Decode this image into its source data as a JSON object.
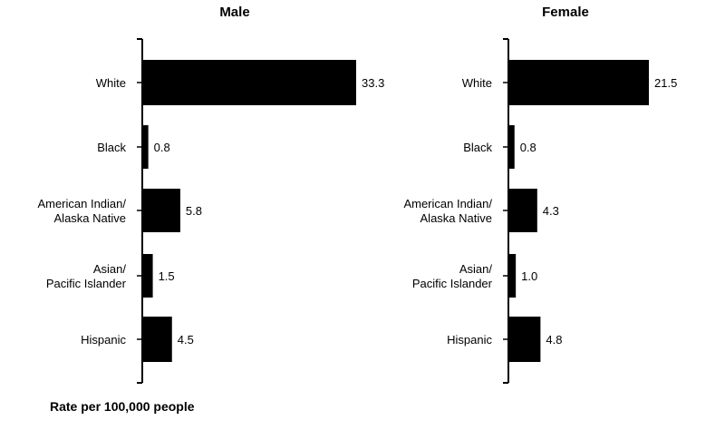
{
  "footnote": "Rate per 100,000 people",
  "chart_data": [
    {
      "type": "bar",
      "orientation": "horizontal",
      "title": "Male",
      "categories": [
        [
          "White"
        ],
        [
          "Black"
        ],
        [
          "American Indian/",
          "Alaska Native"
        ],
        [
          "Asian/",
          "Pacific Islander"
        ],
        [
          "Hispanic"
        ]
      ],
      "values": [
        33.3,
        0.8,
        5.8,
        1.5,
        4.5
      ],
      "labels": [
        "33.3",
        "0.8",
        "5.8",
        "1.5",
        "4.5"
      ],
      "xlim": [
        0,
        33.3
      ],
      "bar_color": "#000000",
      "grid": false
    },
    {
      "type": "bar",
      "orientation": "horizontal",
      "title": "Female",
      "categories": [
        [
          "White"
        ],
        [
          "Black"
        ],
        [
          "American Indian/",
          "Alaska Native"
        ],
        [
          "Asian/",
          "Pacific Islander"
        ],
        [
          "Hispanic"
        ]
      ],
      "values": [
        21.5,
        0.8,
        4.3,
        1.0,
        4.8
      ],
      "labels": [
        "21.5",
        "0.8",
        "4.3",
        "1.0",
        "4.8"
      ],
      "xlim": [
        0,
        21.5
      ],
      "bar_color": "#000000",
      "grid": false
    }
  ]
}
